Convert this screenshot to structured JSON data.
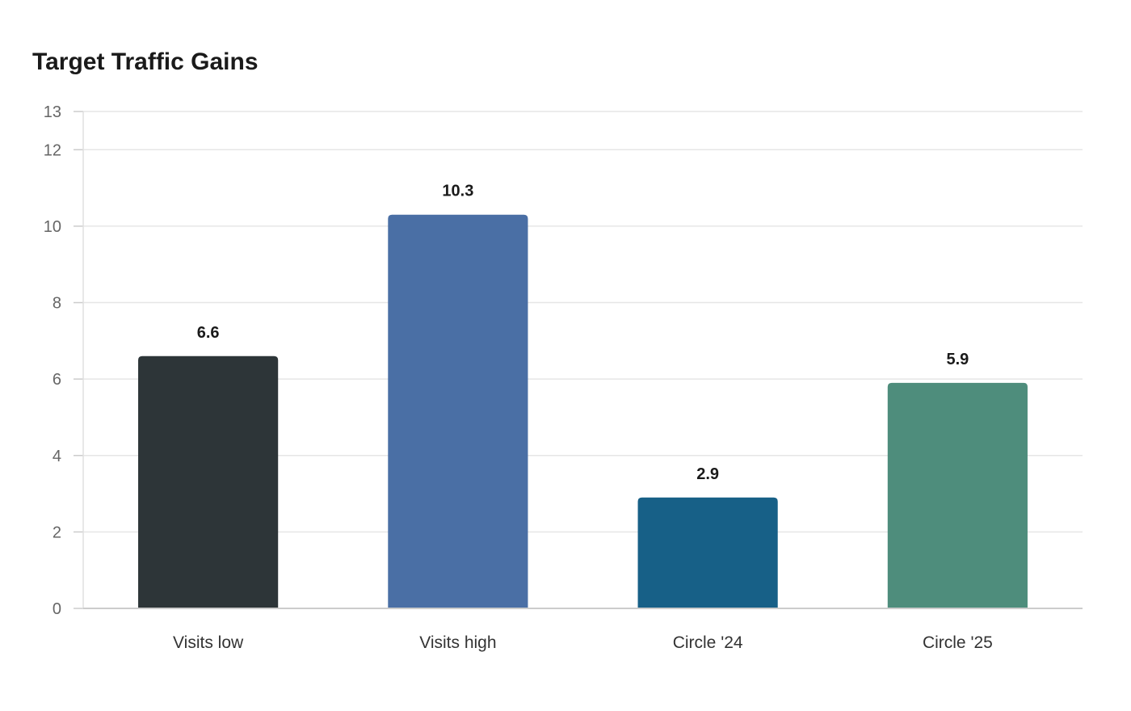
{
  "chart_data": {
    "type": "bar",
    "title": "Target Traffic Gains",
    "xlabel": "",
    "ylabel": "",
    "categories": [
      "Visits low",
      "Visits high",
      "Circle '24",
      "Circle '25"
    ],
    "values": [
      6.6,
      10.3,
      2.9,
      5.9
    ],
    "value_labels": [
      "6.6",
      "10.3",
      "2.9",
      "5.9"
    ],
    "colors": [
      "#2d3538",
      "#4a6fa5",
      "#176087",
      "#4e8d7c"
    ],
    "ylim": [
      0,
      13
    ],
    "yticks": [
      0,
      2,
      4,
      6,
      8,
      10,
      12,
      13
    ],
    "grid": true,
    "legend": "none"
  }
}
